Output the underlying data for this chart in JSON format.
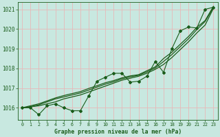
{
  "xlabel": "Graphe pression niveau de la mer (hPa)",
  "bg_color": "#c8e8e0",
  "grid_color": "#e8b8b8",
  "line_color": "#1a5c1a",
  "x_hours": [
    0,
    1,
    2,
    3,
    4,
    5,
    6,
    7,
    8,
    9,
    10,
    11,
    12,
    13,
    14,
    15,
    16,
    17,
    18,
    19,
    20,
    21,
    22,
    23
  ],
  "pressure_data": [
    1016.0,
    1016.0,
    1015.65,
    1016.1,
    1016.2,
    1016.0,
    1015.85,
    1015.85,
    1016.6,
    1017.35,
    1017.55,
    1017.75,
    1017.75,
    1017.3,
    1017.35,
    1017.6,
    1018.35,
    1017.8,
    1019.0,
    1019.9,
    1020.1,
    1020.05,
    1021.0,
    1021.1
  ],
  "smooth_line1": [
    1016.0,
    1016.05,
    1016.1,
    1016.2,
    1016.3,
    1016.45,
    1016.55,
    1016.65,
    1016.8,
    1016.95,
    1017.1,
    1017.25,
    1017.4,
    1017.5,
    1017.6,
    1017.75,
    1017.95,
    1018.2,
    1018.55,
    1018.95,
    1019.35,
    1019.8,
    1020.2,
    1021.05
  ],
  "smooth_line2": [
    1016.0,
    1016.05,
    1016.15,
    1016.3,
    1016.45,
    1016.55,
    1016.65,
    1016.75,
    1016.9,
    1017.05,
    1017.2,
    1017.32,
    1017.47,
    1017.57,
    1017.65,
    1017.82,
    1018.02,
    1018.35,
    1018.7,
    1019.1,
    1019.5,
    1019.97,
    1020.38,
    1021.1
  ],
  "smooth_line3": [
    1016.0,
    1016.1,
    1016.2,
    1016.35,
    1016.5,
    1016.62,
    1016.72,
    1016.82,
    1016.98,
    1017.12,
    1017.27,
    1017.38,
    1017.52,
    1017.62,
    1017.68,
    1017.88,
    1018.08,
    1018.5,
    1018.82,
    1019.22,
    1019.62,
    1020.08,
    1020.43,
    1021.15
  ],
  "ylim": [
    1015.4,
    1021.35
  ],
  "yticks": [
    1016,
    1017,
    1018,
    1019,
    1020,
    1021
  ],
  "xticks": [
    0,
    1,
    2,
    3,
    4,
    5,
    6,
    7,
    8,
    9,
    10,
    11,
    12,
    13,
    14,
    15,
    16,
    17,
    18,
    19,
    20,
    21,
    22,
    23
  ]
}
